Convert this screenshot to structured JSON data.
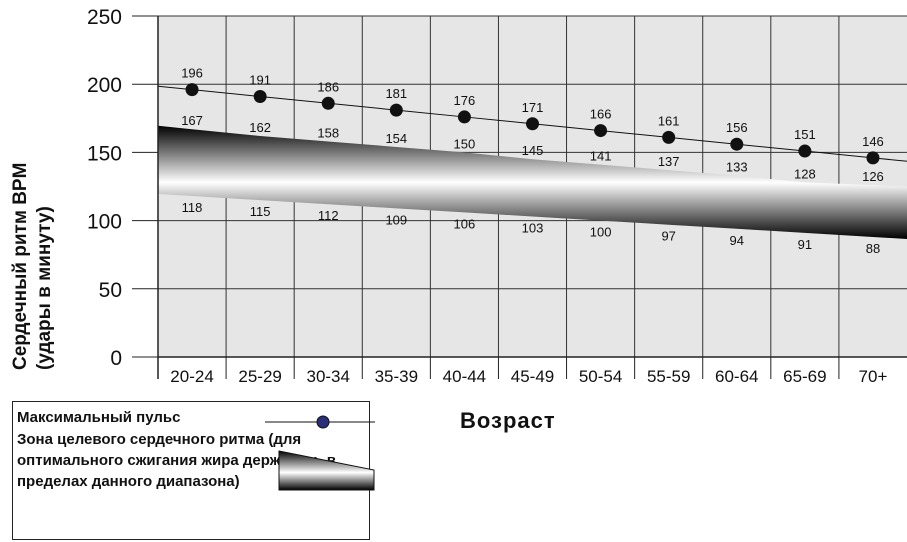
{
  "chart_data": {
    "type": "line",
    "xlabel": "Возраст",
    "ylabel": [
      "Сердечный ритм BPM",
      "(удары в минуту)"
    ],
    "ylim": [
      0,
      250
    ],
    "yticks": [
      0,
      50,
      100,
      150,
      200,
      250
    ],
    "categories": [
      "20-24",
      "25-29",
      "30-34",
      "35-39",
      "40-44",
      "45-49",
      "50-54",
      "55-59",
      "60-64",
      "65-69",
      "70+"
    ],
    "grid": true,
    "series": [
      {
        "name": "Максимальный пульс",
        "type": "line-markers",
        "color": "#111111",
        "values": [
          196,
          191,
          186,
          181,
          176,
          171,
          166,
          161,
          156,
          151,
          146
        ]
      },
      {
        "name": "Зона целевого сердечного ритма (для оптимального сжигания жира держитесь в пределах данного диапазона)",
        "type": "band",
        "upper": [
          167,
          162,
          158,
          154,
          150,
          145,
          141,
          137,
          133,
          128,
          126
        ],
        "lower": [
          118,
          115,
          112,
          109,
          106,
          103,
          100,
          97,
          94,
          91,
          88
        ]
      }
    ],
    "legend_position": "bottom-left"
  },
  "legend": {
    "max_label": "Максимальный пульс",
    "zone_label": "Зона целевого сердечного ритма (для оптимального сжигания жира держитесь в пределах данного диапазона)"
  }
}
